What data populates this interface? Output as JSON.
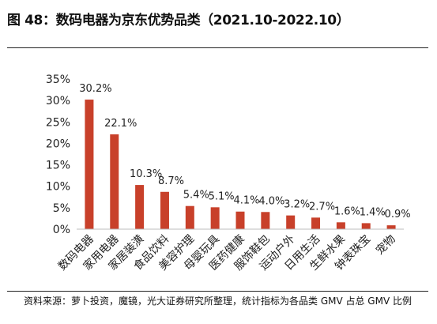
{
  "figure_title": "图 48：数码电器为京东优势品类（2021.10-2022.10）",
  "source_note": "资料来源：萝卜投资，魔镜，光大证券研究所整理，统计指标为各品类 GMV 占总 GMV 比例",
  "chart_data": {
    "type": "bar",
    "title": "",
    "xlabel": "",
    "ylabel": "",
    "ylim": [
      0,
      35
    ],
    "y_ticks": [
      0,
      5,
      10,
      15,
      20,
      25,
      30,
      35
    ],
    "y_tick_labels": [
      "0%",
      "5%",
      "10%",
      "15%",
      "20%",
      "25%",
      "30%",
      "35%"
    ],
    "categories": [
      "数码电器",
      "家用电器",
      "家居装潢",
      "食品饮料",
      "美容护理",
      "母婴玩具",
      "医药健康",
      "服饰鞋包",
      "运动户外",
      "日用生活",
      "生鲜水果",
      "钟表珠宝",
      "宠物"
    ],
    "values": [
      30.2,
      22.1,
      10.3,
      8.7,
      5.4,
      5.1,
      4.1,
      4.0,
      3.2,
      2.7,
      1.6,
      1.4,
      0.9
    ],
    "value_labels": [
      "30.2%",
      "22.1%",
      "10.3%",
      "8.7%",
      "5.4%",
      "5.1%",
      "4.1%",
      "4.0%",
      "3.2%",
      "2.7%",
      "1.6%",
      "1.4%",
      "0.9%"
    ],
    "bar_color": "#c8402a",
    "grid": false,
    "legend": "none"
  }
}
